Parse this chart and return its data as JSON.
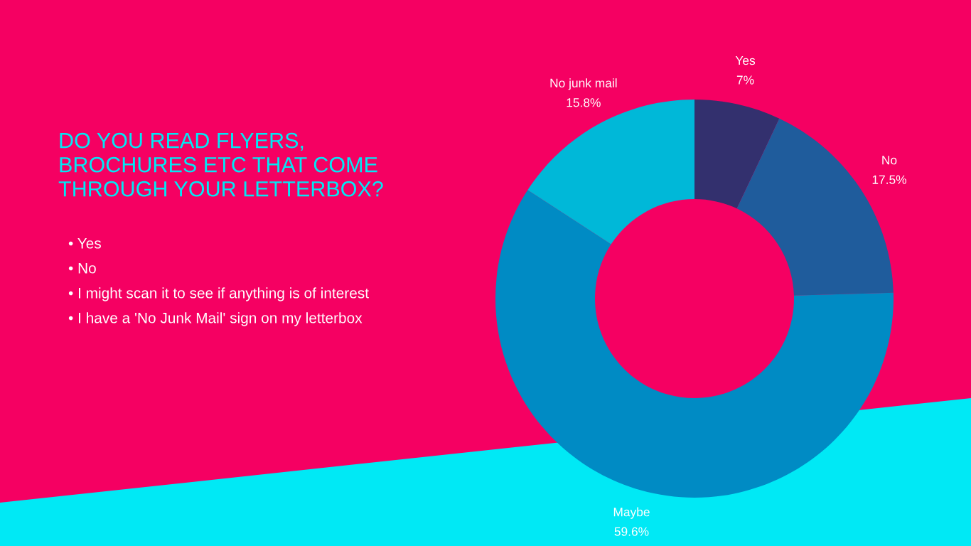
{
  "chart_data": {
    "type": "donut",
    "title": "DO YOU READ FLYERS, BROCHURES ETC THAT COME THROUGH YOUR LETTERBOX?",
    "categories": [
      "Yes",
      "No",
      "Maybe",
      "No junk mail"
    ],
    "values": [
      7,
      17.5,
      59.6,
      15.8
    ],
    "value_labels": [
      "7%",
      "17.5%",
      "59.6%",
      "15.8%"
    ],
    "colors": [
      "#33306e",
      "#1f5c9c",
      "#008bc4",
      "#00b8d8"
    ],
    "annotations": [
      "• Yes",
      "• No",
      "• I might scan it to see if anything is of interest",
      "• I have a 'No Junk Mail' sign on my letterbox"
    ]
  }
}
